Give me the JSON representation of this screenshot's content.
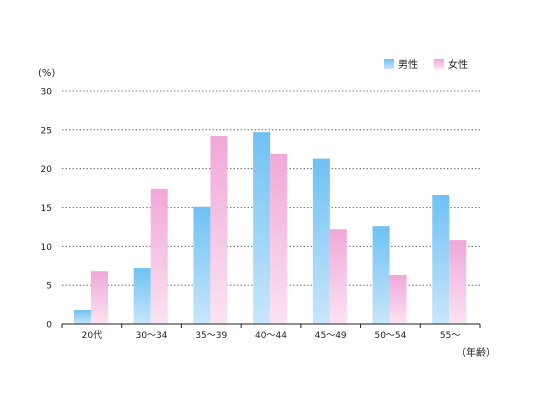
{
  "chart_data": {
    "type": "bar",
    "categories": [
      "20代",
      "30～34",
      "35～39",
      "40～44",
      "45～49",
      "50～54",
      "55～"
    ],
    "series": [
      {
        "name": "男性",
        "values": [
          1.8,
          7.2,
          15.1,
          24.7,
          21.3,
          12.6,
          16.6
        ],
        "color": "#6ec1f3"
      },
      {
        "name": "女性",
        "values": [
          6.8,
          17.4,
          24.2,
          21.9,
          12.2,
          6.3,
          10.8
        ],
        "color": "#f0a8d8"
      }
    ],
    "ylim": [
      0,
      30
    ],
    "yticks": [
      "0",
      "5",
      "10",
      "15",
      "20",
      "25",
      "30"
    ],
    "y_unit": "(%)",
    "x_unit": "（年齢）",
    "grid": true,
    "legend_position": "top-right"
  }
}
